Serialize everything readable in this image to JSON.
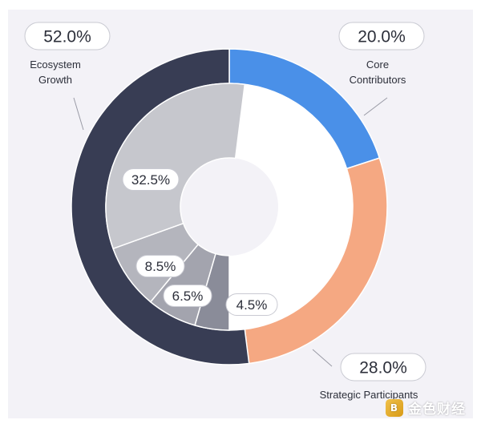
{
  "colors": {
    "outer_ecosystem": "#383d54",
    "outer_core": "#4a90e8",
    "outer_strategic": "#f5a882",
    "inner_32_5": "#c6c7cd",
    "inner_8_5": "#b4b5bd",
    "inner_6_5": "#a3a4ae",
    "inner_4_5": "#8a8c99",
    "inner_remaining": "#ffffff"
  },
  "chart_data": {
    "type": "pie",
    "title": "",
    "outer_ring": {
      "slices": [
        {
          "label": "Core Contributors",
          "value": 20.0,
          "value_label": "20.0%"
        },
        {
          "label": "Strategic Participants",
          "value": 28.0,
          "value_label": "28.0%"
        },
        {
          "label": "Ecosystem Growth",
          "value": 52.0,
          "value_label": "52.0%"
        }
      ]
    },
    "inner_ring": {
      "slices": [
        {
          "value": 4.5,
          "value_label": "4.5%"
        },
        {
          "value": 6.5,
          "value_label": "6.5%"
        },
        {
          "value": 8.5,
          "value_label": "8.5%"
        },
        {
          "value": 32.5,
          "value_label": "32.5%"
        }
      ]
    }
  },
  "watermark": {
    "text": "金色财经",
    "logo_glyph": "B"
  }
}
